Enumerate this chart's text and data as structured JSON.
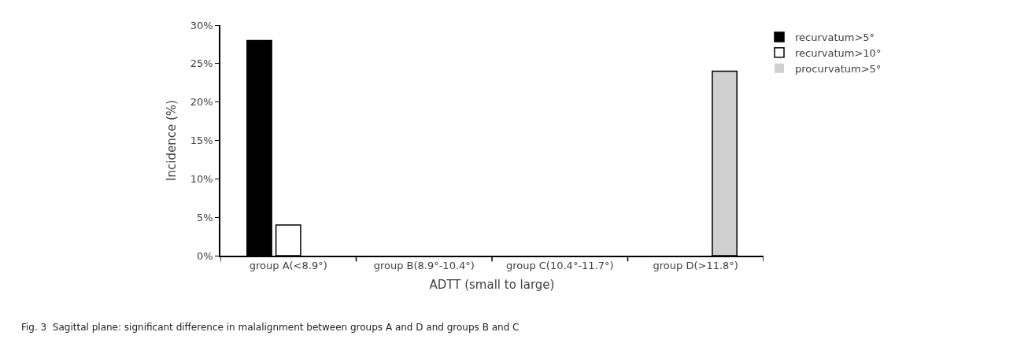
{
  "chart_data": {
    "type": "bar",
    "xlabel": "ADTT (small to large)",
    "ylabel": "Incidence (%)",
    "categories": [
      "group A(<8.9°)",
      "group B(8.9°-10.4°)",
      "group C(10.4°-11.7°)",
      "group D(>11.8°)"
    ],
    "series": [
      {
        "name": "recurvatum>5°",
        "color": "#000000",
        "values": [
          28,
          0,
          0,
          0
        ]
      },
      {
        "name": "recurvatum>10°",
        "color": "#ffffff",
        "values": [
          4,
          0,
          0,
          0
        ]
      },
      {
        "name": "procurvatum>5°",
        "color": "#d0d0d0",
        "values": [
          0,
          0,
          0,
          24
        ]
      }
    ],
    "ylim": [
      0,
      30
    ],
    "yticks": [
      {
        "value": 0,
        "label": "0%"
      },
      {
        "value": 5,
        "label": "5%"
      },
      {
        "value": 10,
        "label": "10%"
      },
      {
        "value": 15,
        "label": "15%"
      },
      {
        "value": 20,
        "label": "20%"
      },
      {
        "value": 25,
        "label": "25%"
      },
      {
        "value": 30,
        "label": "30%"
      }
    ],
    "grid": false,
    "legend": "top right",
    "annotations": [
      "Fig. 3  Sagittal plane: significant difference in malalignment between groups A and D and groups B and C"
    ]
  }
}
